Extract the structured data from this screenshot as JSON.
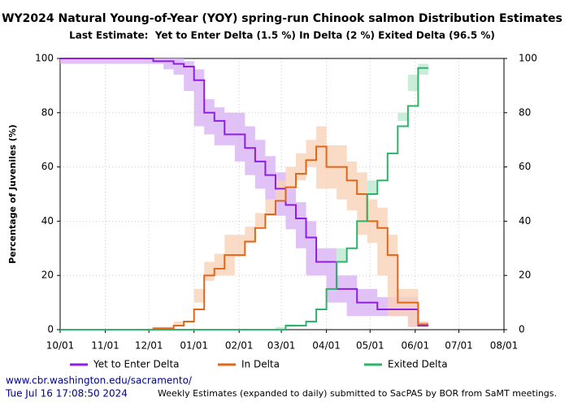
{
  "chart_data": {
    "type": "step-band",
    "title": "WY2024 Natural Young-of-Year (YOY) spring-run Chinook salmon Distribution Estimates",
    "subtitle": "Last Estimate:  Yet to Enter Delta (1.5 %) In Delta (2 %) Exited Delta (96.5 %)",
    "y_label": "Percentage of Juveniles (%)",
    "x": [
      "10/01",
      "12/04",
      "12/11",
      "12/18",
      "12/25",
      "01/01",
      "01/08",
      "01/15",
      "01/22",
      "01/29",
      "02/05",
      "02/12",
      "02/19",
      "02/26",
      "03/04",
      "03/11",
      "03/18",
      "03/25",
      "04/01",
      "04/08",
      "04/15",
      "04/22",
      "04/29",
      "05/06",
      "05/13",
      "05/20",
      "05/27",
      "06/03",
      "06/10"
    ],
    "series": [
      {
        "name": "Yet to Enter Delta",
        "color": "#8e1ee0",
        "band_color": "#d9b3f5",
        "values": [
          100,
          99,
          99,
          98,
          97,
          92,
          80,
          77,
          72,
          72,
          67,
          62,
          57,
          52,
          46,
          41,
          34,
          25,
          25,
          15,
          15,
          10,
          10,
          7.5,
          7.5,
          7.5,
          7.5,
          1.5,
          1.5
        ],
        "upper": [
          100,
          100,
          100,
          100,
          99,
          96,
          85,
          82,
          80,
          80,
          75,
          70,
          64,
          58,
          52,
          47,
          40,
          30,
          30,
          20,
          20,
          15,
          15,
          12,
          12,
          12,
          12,
          3,
          3
        ],
        "lower": [
          100,
          98,
          98,
          96,
          94,
          88,
          75,
          72,
          68,
          68,
          62,
          57,
          52,
          48,
          42,
          37,
          30,
          20,
          20,
          10,
          10,
          5,
          5,
          5,
          5,
          5,
          5,
          1,
          1
        ]
      },
      {
        "name": "In Delta",
        "color": "#e0661a",
        "band_color": "#f7d2b8",
        "values": [
          0,
          0.5,
          0.5,
          1.5,
          3,
          7.5,
          20,
          22.5,
          27.5,
          27.5,
          32.5,
          37.5,
          42.5,
          47.5,
          52.5,
          57.5,
          62.5,
          67.5,
          60,
          60,
          55,
          50,
          40,
          37.5,
          27.5,
          10,
          10,
          2,
          2
        ],
        "upper": [
          0,
          1,
          1,
          3,
          5,
          10,
          25,
          28,
          35,
          35,
          38,
          43,
          48,
          55,
          60,
          65,
          70,
          75,
          68,
          68,
          62,
          58,
          48,
          45,
          35,
          15,
          15,
          3,
          3
        ],
        "lower": [
          0,
          0,
          0,
          0.5,
          2,
          5,
          15,
          18,
          20,
          20,
          27,
          32,
          38,
          42,
          48,
          52,
          55,
          60,
          52,
          52,
          48,
          44,
          35,
          32,
          20,
          5,
          5,
          1,
          1
        ]
      },
      {
        "name": "Exited Delta",
        "color": "#2eb36a",
        "band_color": "#bce8cf",
        "values": [
          0,
          0,
          0,
          0,
          0,
          0,
          0,
          0,
          0,
          0,
          0,
          0,
          0,
          0,
          1.5,
          1.5,
          3,
          7.5,
          15,
          25,
          30,
          40,
          50,
          55,
          65,
          75,
          82.5,
          96.5,
          96.5
        ],
        "upper": [
          0,
          0,
          0,
          0,
          0,
          0,
          0,
          0,
          0,
          0,
          0,
          0,
          0,
          0,
          2,
          2,
          5,
          10,
          20,
          30,
          35,
          45,
          55,
          60,
          70,
          80,
          88,
          98,
          98
        ],
        "lower": [
          0,
          0,
          0,
          0,
          0,
          0,
          0,
          0,
          0,
          0,
          0,
          0,
          0,
          0,
          1,
          1,
          2,
          5,
          10,
          20,
          25,
          35,
          45,
          50,
          60,
          70,
          77,
          94,
          94
        ]
      }
    ],
    "xlim": [
      "10/01",
      "08/01"
    ],
    "xticks": [
      "10/01",
      "11/01",
      "12/01",
      "01/01",
      "02/01",
      "03/01",
      "04/01",
      "05/01",
      "06/01",
      "07/01",
      "08/01"
    ],
    "ylim": [
      0,
      100
    ],
    "yticks": [
      0,
      20,
      40,
      60,
      80,
      100
    ],
    "y2lim": [
      0,
      100
    ],
    "y2ticks": [
      0,
      20,
      40,
      60,
      80,
      100
    ],
    "grid": true,
    "legend": "bottom"
  },
  "footer": {
    "url": "www.cbr.washington.edu/sacramento/",
    "timestamp": "Tue Jul 16 17:08:50 2024",
    "note": "Weekly Estimates (expanded to daily) submitted to SacPAS by BOR from SaMT meetings."
  }
}
